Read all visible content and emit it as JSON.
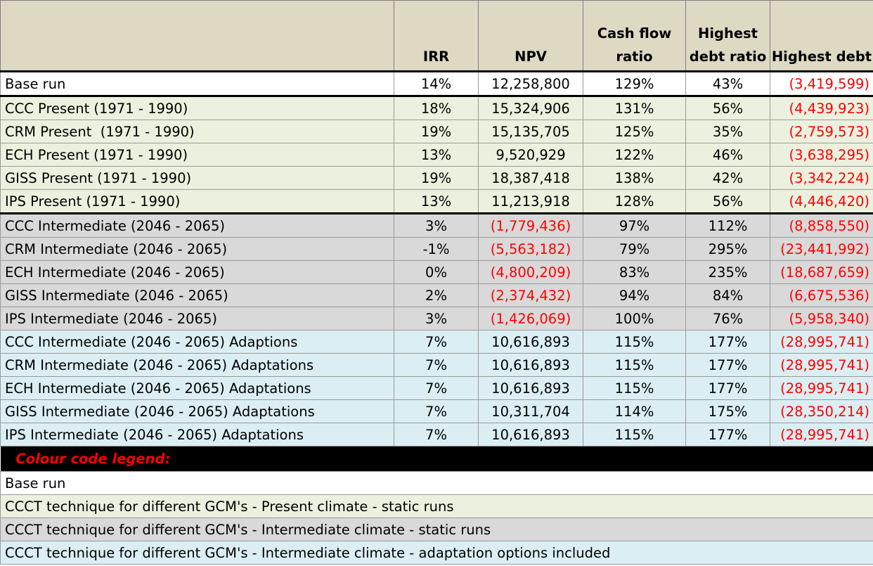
{
  "headers": {
    "scenario": "",
    "irr": "IRR",
    "npv": "NPV",
    "cash_flow_ratio": "Cash flow ratio",
    "highest_debt_ratio": "Highest debt ratio",
    "highest_debt": "Highest debt"
  },
  "rows": [
    {
      "scenario": "Base run",
      "irr": "14%",
      "npv": "12,258,800",
      "cfr": "129%",
      "hdr": "43%",
      "hd": "(3,419,599)"
    },
    {
      "scenario": "CCC Present (1971 - 1990)",
      "irr": "18%",
      "npv": "15,324,906",
      "cfr": "131%",
      "hdr": "56%",
      "hd": "(4,439,923)"
    },
    {
      "scenario": "CRM Present  (1971 - 1990)",
      "irr": "19%",
      "npv": "15,135,705",
      "cfr": "125%",
      "hdr": "35%",
      "hd": "(2,759,573)"
    },
    {
      "scenario": "ECH Present (1971 - 1990)",
      "irr": "13%",
      "npv": "9,520,929",
      "cfr": "122%",
      "hdr": "46%",
      "hd": "(3,638,295)"
    },
    {
      "scenario": "GISS Present (1971 - 1990)",
      "irr": "19%",
      "npv": "18,387,418",
      "cfr": "138%",
      "hdr": "42%",
      "hd": "(3,342,224)"
    },
    {
      "scenario": "IPS Present (1971 - 1990)",
      "irr": "13%",
      "npv": "11,213,918",
      "cfr": "128%",
      "hdr": "56%",
      "hd": "(4,446,420)"
    },
    {
      "scenario": "CCC Intermediate (2046 - 2065)",
      "irr": "3%",
      "npv": "(1,779,436)",
      "cfr": "97%",
      "hdr": "112%",
      "hd": "(8,858,550)"
    },
    {
      "scenario": "CRM Intermediate (2046 - 2065)",
      "irr": "-1%",
      "npv": "(5,563,182)",
      "cfr": "79%",
      "hdr": "295%",
      "hd": "(23,441,992)"
    },
    {
      "scenario": "ECH Intermediate (2046 - 2065)",
      "irr": "0%",
      "npv": "(4,800,209)",
      "cfr": "83%",
      "hdr": "235%",
      "hd": "(18,687,659)"
    },
    {
      "scenario": "GISS Intermediate (2046 - 2065)",
      "irr": "2%",
      "npv": "(2,374,432)",
      "cfr": "94%",
      "hdr": "84%",
      "hd": "(6,675,536)"
    },
    {
      "scenario": "IPS Intermediate (2046 - 2065)",
      "irr": "3%",
      "npv": "(1,426,069)",
      "cfr": "100%",
      "hdr": "76%",
      "hd": "(5,958,340)"
    },
    {
      "scenario": "CCC Intermediate (2046 - 2065) Adaptions",
      "irr": "7%",
      "npv": "10,616,893",
      "cfr": "115%",
      "hdr": "177%",
      "hd": "(28,995,741)"
    },
    {
      "scenario": "CRM Intermediate (2046 - 2065) Adaptations",
      "irr": "7%",
      "npv": "10,616,893",
      "cfr": "115%",
      "hdr": "177%",
      "hd": "(28,995,741)"
    },
    {
      "scenario": "ECH Intermediate (2046 - 2065) Adaptations",
      "irr": "7%",
      "npv": "10,616,893",
      "cfr": "115%",
      "hdr": "177%",
      "hd": "(28,995,741)"
    },
    {
      "scenario": "GISS Intermediate (2046 - 2065) Adaptations",
      "irr": "7%",
      "npv": "10,311,704",
      "cfr": "114%",
      "hdr": "175%",
      "hd": "(28,350,214)"
    },
    {
      "scenario": "IPS Intermediate (2046 - 2065) Adaptations",
      "irr": "7%",
      "npv": "10,616,893",
      "cfr": "115%",
      "hdr": "177%",
      "hd": "(28,995,741)"
    }
  ],
  "legend": {
    "title": "Colour code legend:",
    "items": [
      "Base run",
      "CCCT technique for different GCM's - Present climate - static runs",
      "CCCT technique for different GCM's - Intermediate climate - static runs",
      "CCCT technique for different GCM's - Intermediate climate - adaptation options included"
    ]
  },
  "colors": {
    "header_bg": "#ddd9c3",
    "base_bg": "#ffffff",
    "present_bg": "#ebf1de",
    "intermediate_bg": "#d9d9d9",
    "adaptation_bg": "#dbeef3",
    "negative_text": "#ff0000",
    "legend_title_bg": "#000000"
  }
}
